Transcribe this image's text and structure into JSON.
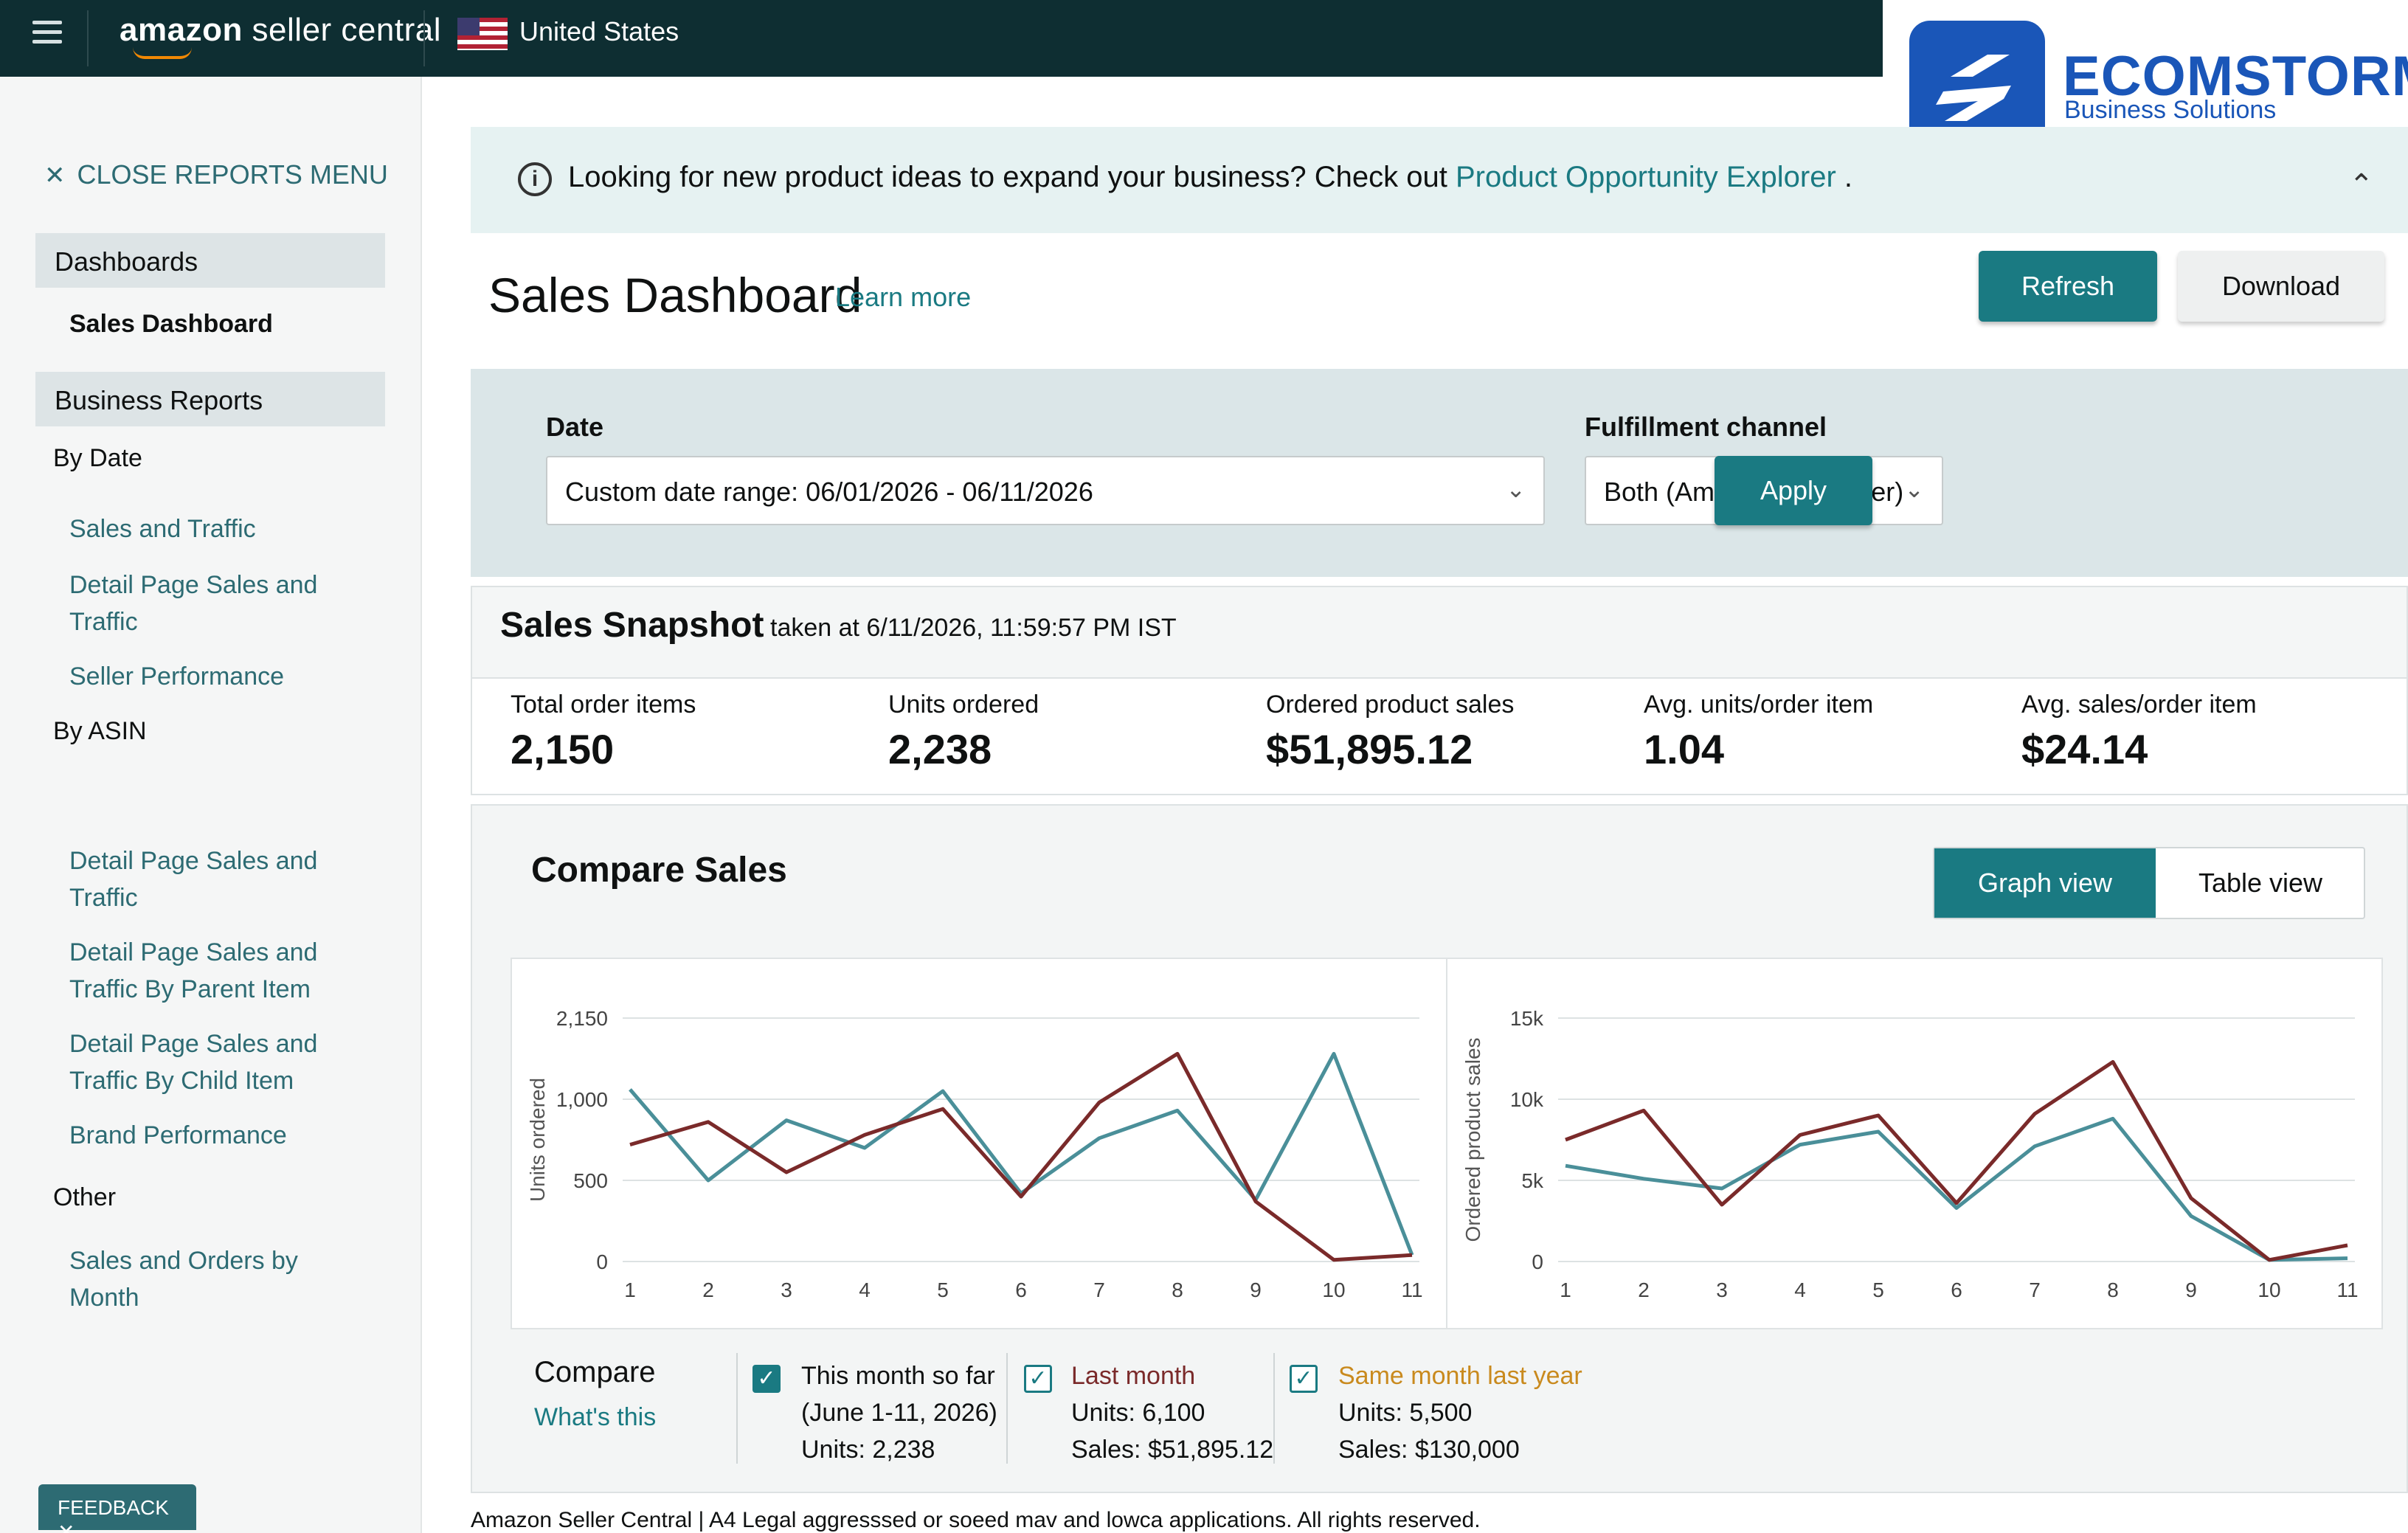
{
  "topbar": {
    "logo_main": "amazon",
    "logo_rest": " seller central",
    "country": "United States"
  },
  "brand": {
    "name": "ECOMSTORM",
    "tagline": "Business Solutions"
  },
  "sidebar": {
    "close": "CLOSE REPORTS MENU",
    "dashboards": "Dashboards",
    "sales_dashboard": "Sales Dashboard",
    "business_reports": "Business Reports",
    "by_date": "By Date",
    "sales_traffic": "Sales and Traffic",
    "detail_page_1a": "Detail Page Sales and",
    "detail_page_1b": "Traffic",
    "seller_performance": "Seller Performance",
    "by_asin": "By ASIN",
    "detail_page_2a": "Detail Page Sales and",
    "detail_page_2b": "Traffic",
    "detail_parent_a": "Detail Page Sales and",
    "detail_parent_b": "Traffic By Parent Item",
    "detail_child_a": "Detail Page Sales and",
    "detail_child_b": "Traffic By Child Item",
    "brand_performance": "Brand Performance",
    "other": "Other",
    "sales_orders_a": "Sales and Orders by",
    "sales_orders_b": "Month",
    "feedback": "FEEDBACK"
  },
  "banner": {
    "text": "Looking for new product ideas to expand your business? Check out ",
    "link": "Product Opportunity Explorer",
    "end": " ."
  },
  "header": {
    "title": "Sales Dashboard",
    "learn_more": "Learn more",
    "refresh": "Refresh",
    "download": "Download"
  },
  "filters": {
    "date_label": "Date",
    "date_value": "Custom date range: 06/01/2026 - 06/11/2026",
    "channel_label": "Fulfillment channel",
    "channel_value": "Both (Amazon and seller)",
    "apply": "Apply"
  },
  "snapshot": {
    "title": "Sales Snapshot",
    "taken": "taken at 6/11/2026, 11:59:57 PM IST",
    "metrics": [
      {
        "label": "Total order items",
        "value": "2,150"
      },
      {
        "label": "Units ordered",
        "value": "2,238"
      },
      {
        "label": "Ordered product sales",
        "value": "$51,895.12"
      },
      {
        "label": "Avg. units/order item",
        "value": "1.04"
      },
      {
        "label": "Avg. sales/order item",
        "value": "$24.14"
      }
    ]
  },
  "compare": {
    "title": "Compare Sales",
    "graph_view": "Graph view",
    "table_view": "Table view",
    "legend_compare": "Compare",
    "legend_whats": "What's this",
    "legend": [
      {
        "title": "This month so far",
        "line2": "(June 1-11, 2026)",
        "line3": "Units: 2,238"
      },
      {
        "title": "Last month",
        "line2": "Units: 6,100",
        "line3": "Sales: $51,895.12"
      },
      {
        "title": "Same month last year",
        "line2": "Units: 5,500",
        "line3": "Sales: $130,000"
      }
    ]
  },
  "colors": {
    "teal": "#4a8f99",
    "maroon": "#7a2a2a",
    "accent": "#1a7a82",
    "last_year": "#c98a1e"
  },
  "chart_data": [
    {
      "type": "line",
      "ylabel": "Units ordered",
      "x": [
        1,
        2,
        3,
        4,
        5,
        6,
        7,
        8,
        9,
        10,
        11
      ],
      "yticks": [
        "0",
        "500",
        "1,000",
        "2,150"
      ],
      "series": [
        {
          "name": "This month so far",
          "color": "#4a8f99",
          "values": [
            1060,
            500,
            870,
            700,
            1050,
            420,
            760,
            930,
            380,
            1280,
            40
          ]
        },
        {
          "name": "Last month",
          "color": "#7a2a2a",
          "values": [
            720,
            860,
            550,
            780,
            940,
            400,
            980,
            1280,
            370,
            10,
            40
          ]
        }
      ]
    },
    {
      "type": "line",
      "ylabel": "Ordered product sales",
      "x": [
        1,
        2,
        3,
        4,
        5,
        6,
        7,
        8,
        9,
        10,
        11
      ],
      "yticks": [
        "0",
        "5k",
        "10k",
        "15k"
      ],
      "series": [
        {
          "name": "This month so far",
          "color": "#4a8f99",
          "values": [
            5900,
            5100,
            4500,
            7200,
            8000,
            3300,
            7100,
            8800,
            2800,
            100,
            200
          ]
        },
        {
          "name": "Last month",
          "color": "#7a2a2a",
          "values": [
            7500,
            9300,
            3500,
            7800,
            9000,
            3600,
            9100,
            12300,
            3900,
            100,
            1000
          ]
        }
      ]
    }
  ],
  "footer": "Amazon Seller Central | A4 Legal aggresssed or soeed mav and lowca applications. All rights reserved."
}
